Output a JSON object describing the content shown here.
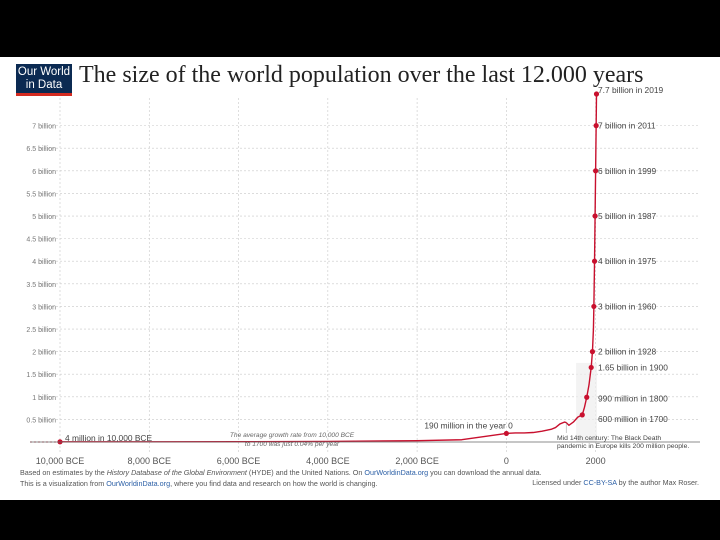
{
  "logo": {
    "line1": "Our World",
    "line2": "in Data"
  },
  "title": "The size of the world population over the last 12.000 years",
  "chart_data": {
    "type": "line",
    "title": "The size of the world population over the last 12.000 years",
    "xlabel": "",
    "ylabel": "",
    "xlim": [
      -10000,
      2030
    ],
    "ylim": [
      0,
      7.7
    ],
    "grid": true,
    "y_ticks": [
      {
        "v": 0.5,
        "label": "0.5 billion"
      },
      {
        "v": 1,
        "label": "1 billion"
      },
      {
        "v": 1.5,
        "label": "1.5 billion"
      },
      {
        "v": 2,
        "label": "2 billion"
      },
      {
        "v": 2.5,
        "label": "2.5 billion"
      },
      {
        "v": 3,
        "label": "3 billion"
      },
      {
        "v": 3.5,
        "label": "3.5 billion"
      },
      {
        "v": 4,
        "label": "4 billion"
      },
      {
        "v": 4.5,
        "label": "4.5 billion"
      },
      {
        "v": 5,
        "label": "5 billion"
      },
      {
        "v": 5.5,
        "label": "5.5 billion"
      },
      {
        "v": 6,
        "label": "6 billion"
      },
      {
        "v": 6.5,
        "label": "6.5 billion"
      },
      {
        "v": 7,
        "label": "7 billion"
      }
    ],
    "x_ticks": [
      {
        "v": -10000,
        "label": "10,000 BCE"
      },
      {
        "v": -8000,
        "label": "8,000 BCE"
      },
      {
        "v": -6000,
        "label": "6,000 BCE"
      },
      {
        "v": -4000,
        "label": "4,000 BCE"
      },
      {
        "v": -2000,
        "label": "2,000 BCE"
      },
      {
        "v": 0,
        "label": "0"
      },
      {
        "v": 2000,
        "label": "2000"
      }
    ],
    "series": [
      {
        "x": [
          -10000,
          -8000,
          -6000,
          -4000,
          -2000,
          -1000,
          0,
          200,
          400,
          600,
          800,
          1000,
          1100,
          1200,
          1300,
          1340,
          1400,
          1500,
          1600,
          1700,
          1750,
          1800,
          1850,
          1900,
          1928,
          1950,
          1960,
          1975,
          1987,
          1999,
          2011,
          2019
        ],
        "y": [
          0.004,
          0.005,
          0.007,
          0.012,
          0.03,
          0.05,
          0.19,
          0.2,
          0.2,
          0.21,
          0.24,
          0.28,
          0.32,
          0.4,
          0.44,
          0.43,
          0.37,
          0.44,
          0.55,
          0.6,
          0.77,
          0.99,
          1.26,
          1.65,
          2.0,
          2.5,
          3.0,
          4.0,
          5.0,
          6.0,
          7.0,
          7.7
        ]
      }
    ],
    "annotations": [
      {
        "x": -10000,
        "y": 0.004,
        "label": "4 million in 10,000 BCE",
        "side": "right"
      },
      {
        "x": 0,
        "y": 0.19,
        "label": "190 million in the year 0",
        "side": "above"
      },
      {
        "x": 1700,
        "y": 0.6,
        "label": "600 million in 1700",
        "side": "right"
      },
      {
        "x": 1800,
        "y": 0.99,
        "label": "990 million in 1800",
        "side": "right"
      },
      {
        "x": 1900,
        "y": 1.65,
        "label": "1.65 billion in 1900",
        "side": "right"
      },
      {
        "x": 1928,
        "y": 2.0,
        "label": "2 billion in 1928",
        "side": "right"
      },
      {
        "x": 1960,
        "y": 3.0,
        "label": "3 billion in 1960",
        "side": "right"
      },
      {
        "x": 1975,
        "y": 4.0,
        "label": "4 billion in 1975",
        "side": "right"
      },
      {
        "x": 1987,
        "y": 5.0,
        "label": "5 billion in 1987",
        "side": "right"
      },
      {
        "x": 1999,
        "y": 6.0,
        "label": "6 billion in 1999",
        "side": "right"
      },
      {
        "x": 2011,
        "y": 7.0,
        "label": "7 billion in 2011",
        "side": "right"
      },
      {
        "x": 2019,
        "y": 7.7,
        "label": "7.7 billion in 2019",
        "side": "right"
      }
    ],
    "notes": {
      "growth_rate_1": "The average growth rate from 10,000 BCE",
      "growth_rate_2": "to 1700 was just 0.04% per year",
      "black_death_1": "Mid 14th century: The Black Death",
      "black_death_2": "pandemic in Europe kills 200 million people."
    }
  },
  "footer": {
    "line1_a": "Based on estimates by the ",
    "line1_b": "History Database of the Global Environment",
    "line1_c": " (HYDE) and the United Nations. On ",
    "line1_d": "OurWorldinData.org",
    "line1_e": " you can download the annual data.",
    "line2_a": "This is a visualization from ",
    "line2_b": "OurWorldinData.org",
    "line2_c": ", where you find data and research on how the world is changing.",
    "license_a": "Licensed under ",
    "license_b": "CC-BY-SA",
    "license_c": " by the author Max Roser."
  },
  "colors": {
    "line": "#c8102e",
    "grid": "#c8c8c8",
    "axis": "#666666",
    "logo_bg": "#0b2a52",
    "logo_accent": "#d42b21"
  }
}
